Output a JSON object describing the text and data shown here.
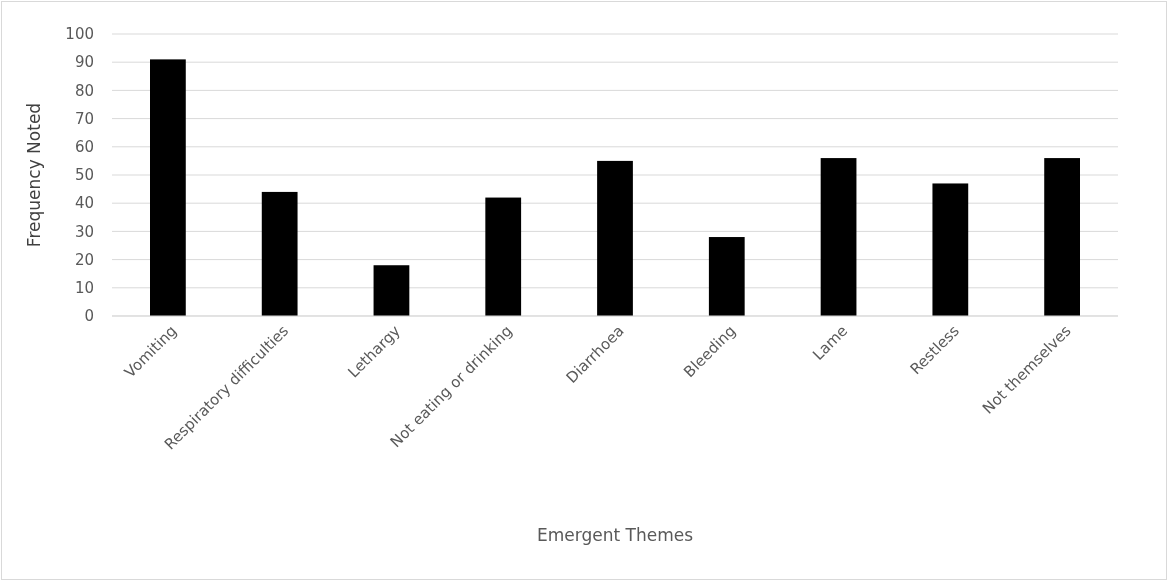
{
  "chart_data": {
    "type": "bar",
    "xlabel": "Emergent Themes",
    "ylabel": "Frequency Noted",
    "categories": [
      "Vomiting",
      "Respiratory difficulties",
      "Lethargy",
      "Not eating or drinking",
      "Diarrhoea",
      "Bleeding",
      "Lame",
      "Restless",
      "Not themselves"
    ],
    "values": [
      91,
      44,
      18,
      42,
      55,
      28,
      56,
      47,
      56
    ],
    "color": "#000000",
    "ylim": [
      0,
      100
    ],
    "yticks": [
      0,
      10,
      20,
      30,
      40,
      50,
      60,
      70,
      80,
      90,
      100
    ],
    "grid": "y"
  }
}
